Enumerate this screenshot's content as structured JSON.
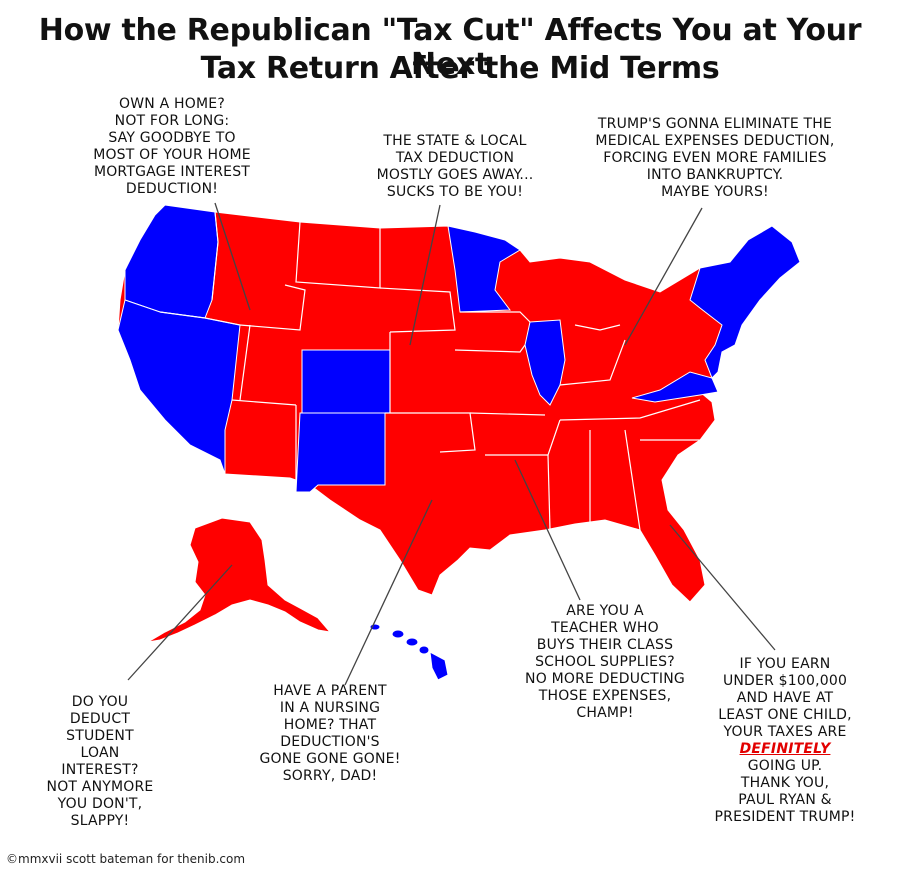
{
  "title": {
    "line1": "How the Republican \"Tax Cut\" Affects You at Your Next",
    "line2": "Tax Return After the Mid Terms"
  },
  "colors": {
    "republican": "#ff0000",
    "democrat": "#0000ff",
    "border": "#ffffff",
    "leader": "#444444"
  },
  "callouts": {
    "mortgage": {
      "lines": [
        "OWN A HOME?",
        "NOT FOR LONG:",
        "SAY GOODBYE TO",
        "MOST OF YOUR HOME",
        "MORTGAGE INTEREST",
        "DEDUCTION!"
      ]
    },
    "salt": {
      "lines": [
        "THE STATE & LOCAL",
        "TAX DEDUCTION",
        "MOSTLY GOES AWAY...",
        "SUCKS TO BE YOU!"
      ]
    },
    "medical": {
      "lines": [
        "TRUMP'S GONNA ELIMINATE THE",
        "MEDICAL EXPENSES DEDUCTION,",
        "FORCING EVEN MORE FAMILIES",
        "INTO BANKRUPTCY.",
        "MAYBE YOURS!"
      ]
    },
    "student": {
      "lines": [
        "DO YOU",
        "DEDUCT",
        "STUDENT",
        "LOAN",
        "INTEREST?",
        "NOT ANYMORE",
        "YOU DON'T,",
        "SLAPPY!"
      ]
    },
    "nursing": {
      "lines": [
        "HAVE A PARENT",
        "IN A NURSING",
        "HOME? THAT",
        "DEDUCTION'S",
        "GONE GONE GONE!",
        "SORRY, DAD!"
      ]
    },
    "teacher": {
      "lines": [
        "ARE YOU A",
        "TEACHER WHO",
        "BUYS THEIR CLASS",
        "SCHOOL SUPPLIES?",
        "NO MORE DEDUCTING",
        "THOSE EXPENSES,",
        "CHAMP!"
      ]
    },
    "earn": {
      "lines_before": [
        "IF YOU EARN",
        "UNDER $100,000",
        "AND HAVE AT",
        "LEAST ONE CHILD,",
        "YOUR TAXES ARE"
      ],
      "emphasis": "DEFINITELY",
      "lines_after": [
        "GOING UP.",
        "THANK YOU,",
        "PAUL RYAN &",
        "PRESIDENT TRUMP!"
      ]
    }
  },
  "credit": "©mmxvii scott bateman for thenib.com"
}
